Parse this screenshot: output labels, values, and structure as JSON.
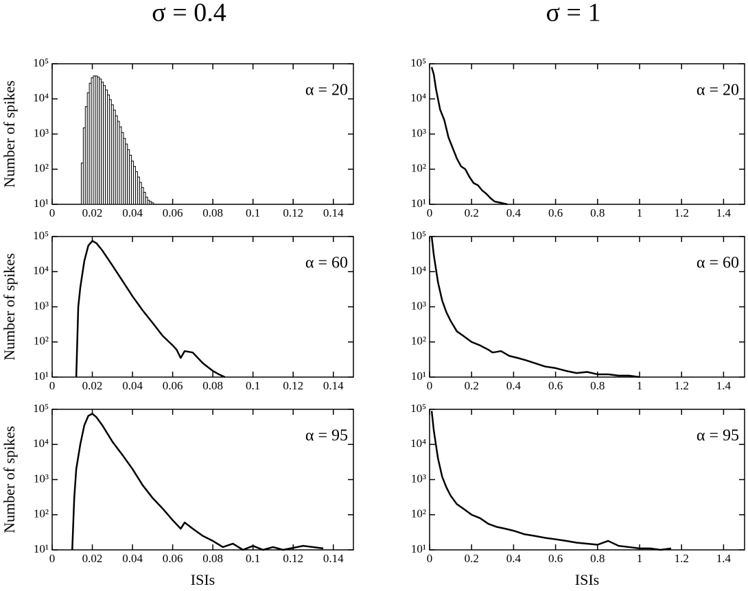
{
  "chart_data": [
    {
      "type": "histogram",
      "title": "σ = 0.4",
      "ylabel": "Number of spikes",
      "annotation": "α = 20",
      "color": "#000000",
      "log_y": true,
      "bins": [
        0.0145,
        0.0155,
        0.0165,
        0.0175,
        0.0185,
        0.0195,
        0.0205,
        0.0215,
        0.0225,
        0.0235,
        0.0245,
        0.0255,
        0.0265,
        0.0275,
        0.0285,
        0.0295,
        0.0305,
        0.0315,
        0.0325,
        0.0335,
        0.0345,
        0.0355,
        0.0365,
        0.0375,
        0.0385,
        0.0395,
        0.0405,
        0.0415,
        0.0425,
        0.0435,
        0.0445,
        0.0455,
        0.0465,
        0.0475,
        0.0485,
        0.0495,
        0.0505
      ],
      "values": [
        150,
        1500,
        6000,
        15000,
        28000,
        40000,
        45000,
        45000,
        42000,
        37000,
        30000,
        24000,
        18000,
        13000,
        9500,
        6800,
        4800,
        3300,
        2300,
        1600,
        1100,
        750,
        520,
        360,
        250,
        170,
        120,
        85,
        60,
        42,
        30,
        22,
        16,
        13,
        12,
        11
      ],
      "xlim": [
        0,
        0.15
      ],
      "xticks": [
        0,
        0.02,
        0.04,
        0.06,
        0.08,
        0.1,
        0.12,
        0.14
      ],
      "ylim": [
        10,
        100000
      ],
      "yticks": [
        {
          "value": 10,
          "label": "10¹"
        },
        {
          "value": 100,
          "label": "10²"
        },
        {
          "value": 1000,
          "label": "10³"
        },
        {
          "value": 10000,
          "label": "10⁴"
        },
        {
          "value": 100000,
          "label": "10⁵"
        }
      ]
    },
    {
      "type": "line",
      "title": "σ = 1",
      "annotation": "α = 20",
      "color": "#000000",
      "log_y": true,
      "x": [
        0.01,
        0.02,
        0.03,
        0.05,
        0.07,
        0.09,
        0.11,
        0.13,
        0.15,
        0.17,
        0.19,
        0.21,
        0.23,
        0.25,
        0.27,
        0.29,
        0.31,
        0.34,
        0.37
      ],
      "values": [
        80000,
        50000,
        20000,
        5000,
        2500,
        800,
        400,
        200,
        120,
        100,
        60,
        40,
        35,
        25,
        20,
        15,
        12,
        11,
        10
      ],
      "xlim": [
        0,
        1.5
      ],
      "xticks": [
        0,
        0.2,
        0.4,
        0.6,
        0.8,
        1,
        1.2,
        1.4
      ],
      "ylim": [
        10,
        100000
      ],
      "yticks": [
        {
          "value": 10,
          "label": "10¹"
        },
        {
          "value": 100,
          "label": "10²"
        },
        {
          "value": 1000,
          "label": "10³"
        },
        {
          "value": 10000,
          "label": "10⁴"
        },
        {
          "value": 100000,
          "label": "10⁵"
        }
      ]
    },
    {
      "type": "line",
      "ylabel": "Number of spikes",
      "annotation": "α = 60",
      "color": "#000000",
      "log_y": true,
      "x": [
        0.012,
        0.013,
        0.014,
        0.016,
        0.018,
        0.02,
        0.022,
        0.025,
        0.03,
        0.035,
        0.04,
        0.045,
        0.05,
        0.055,
        0.06,
        0.062,
        0.064,
        0.066,
        0.07,
        0.075,
        0.08,
        0.083,
        0.086
      ],
      "values": [
        10,
        1000,
        3500,
        20000,
        55000,
        75000,
        65000,
        40000,
        15000,
        5500,
        2000,
        800,
        350,
        150,
        80,
        60,
        35,
        55,
        50,
        25,
        15,
        12,
        10
      ],
      "xlim": [
        0,
        0.15
      ],
      "xticks": [
        0,
        0.02,
        0.04,
        0.06,
        0.08,
        0.1,
        0.12,
        0.14
      ],
      "ylim": [
        10,
        100000
      ],
      "yticks": [
        {
          "value": 10,
          "label": "10¹"
        },
        {
          "value": 100,
          "label": "10²"
        },
        {
          "value": 1000,
          "label": "10³"
        },
        {
          "value": 10000,
          "label": "10⁴"
        },
        {
          "value": 100000,
          "label": "10⁵"
        }
      ]
    },
    {
      "type": "line",
      "annotation": "α = 60",
      "color": "#000000",
      "log_y": true,
      "x": [
        0.01,
        0.02,
        0.04,
        0.06,
        0.08,
        0.1,
        0.13,
        0.16,
        0.2,
        0.24,
        0.28,
        0.3,
        0.34,
        0.38,
        0.42,
        0.46,
        0.5,
        0.55,
        0.6,
        0.65,
        0.7,
        0.75,
        0.8,
        0.85,
        0.9,
        0.95,
        1.0
      ],
      "values": [
        100000,
        30000,
        5000,
        1500,
        700,
        400,
        200,
        150,
        100,
        80,
        60,
        50,
        55,
        40,
        35,
        30,
        25,
        20,
        18,
        15,
        13,
        14,
        12,
        12,
        11,
        11,
        10
      ],
      "xlim": [
        0,
        1.5
      ],
      "xticks": [
        0,
        0.2,
        0.4,
        0.6,
        0.8,
        1,
        1.2,
        1.4
      ],
      "ylim": [
        10,
        100000
      ],
      "yticks": [
        {
          "value": 10,
          "label": "10¹"
        },
        {
          "value": 100,
          "label": "10²"
        },
        {
          "value": 1000,
          "label": "10³"
        },
        {
          "value": 10000,
          "label": "10⁴"
        },
        {
          "value": 100000,
          "label": "10⁵"
        }
      ]
    },
    {
      "type": "line",
      "ylabel": "Number of spikes",
      "xlabel": "ISIs",
      "annotation": "α = 95",
      "color": "#000000",
      "log_y": true,
      "x": [
        0.01,
        0.011,
        0.012,
        0.014,
        0.016,
        0.018,
        0.02,
        0.022,
        0.025,
        0.03,
        0.035,
        0.04,
        0.045,
        0.05,
        0.055,
        0.06,
        0.064,
        0.066,
        0.07,
        0.075,
        0.08,
        0.085,
        0.09,
        0.095,
        0.1,
        0.105,
        0.11,
        0.115,
        0.125,
        0.135
      ],
      "values": [
        10,
        300,
        2000,
        10000,
        35000,
        65000,
        75000,
        60000,
        35000,
        12000,
        5000,
        2000,
        700,
        300,
        150,
        70,
        40,
        60,
        40,
        25,
        18,
        12,
        15,
        10,
        13,
        10,
        12,
        10,
        13,
        11
      ],
      "xlim": [
        0,
        0.15
      ],
      "xticks": [
        0,
        0.02,
        0.04,
        0.06,
        0.08,
        0.1,
        0.12,
        0.14
      ],
      "ylim": [
        10,
        100000
      ],
      "yticks": [
        {
          "value": 10,
          "label": "10¹"
        },
        {
          "value": 100,
          "label": "10²"
        },
        {
          "value": 1000,
          "label": "10³"
        },
        {
          "value": 10000,
          "label": "10⁴"
        },
        {
          "value": 100000,
          "label": "10⁵"
        }
      ]
    },
    {
      "type": "line",
      "xlabel": "ISIs",
      "annotation": "α = 95",
      "color": "#000000",
      "log_y": true,
      "x": [
        0.01,
        0.02,
        0.04,
        0.06,
        0.08,
        0.1,
        0.13,
        0.16,
        0.2,
        0.24,
        0.28,
        0.32,
        0.36,
        0.4,
        0.45,
        0.5,
        0.55,
        0.6,
        0.65,
        0.7,
        0.75,
        0.8,
        0.85,
        0.9,
        0.95,
        1.0,
        1.05,
        1.1,
        1.15
      ],
      "values": [
        90000,
        25000,
        4000,
        1200,
        600,
        350,
        200,
        150,
        100,
        80,
        55,
        45,
        40,
        35,
        28,
        25,
        22,
        20,
        18,
        16,
        15,
        14,
        18,
        13,
        12,
        11,
        11,
        10,
        11
      ],
      "xlim": [
        0,
        1.5
      ],
      "xticks": [
        0,
        0.2,
        0.4,
        0.6,
        0.8,
        1,
        1.2,
        1.4
      ],
      "ylim": [
        10,
        100000
      ],
      "yticks": [
        {
          "value": 10,
          "label": "10¹"
        },
        {
          "value": 100,
          "label": "10²"
        },
        {
          "value": 1000,
          "label": "10³"
        },
        {
          "value": 10000,
          "label": "10⁴"
        },
        {
          "value": 100000,
          "label": "10⁵"
        }
      ]
    }
  ]
}
